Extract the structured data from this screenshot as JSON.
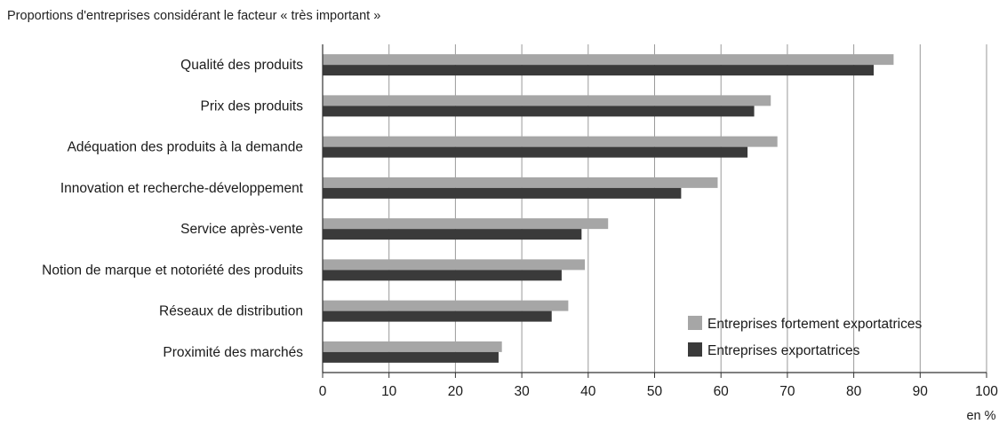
{
  "chart_data": {
    "type": "bar",
    "orientation": "horizontal",
    "title": "Proportions d'entreprises considérant le facteur « très important »",
    "categories": [
      "Qualité des produits",
      "Prix des produits",
      "Adéquation des produits à la demande",
      "Innovation et recherche-développement",
      "Service après-vente",
      "Notion de marque et notoriété des produits",
      "Réseaux de distribution",
      "Proximité des marchés"
    ],
    "series": [
      {
        "name": "Entreprises fortement exportatrices",
        "color": "#a6a6a6",
        "values": [
          86,
          67.5,
          68.5,
          59.5,
          43,
          39.5,
          37,
          27
        ]
      },
      {
        "name": "Entreprises exportatrices",
        "color": "#3a3a3a",
        "values": [
          83,
          65,
          64,
          54,
          39,
          36,
          34.5,
          26.5
        ]
      }
    ],
    "xlim": [
      0,
      100
    ],
    "xticks": [
      "0",
      "10",
      "20",
      "30",
      "40",
      "50",
      "60",
      "70",
      "80",
      "90",
      "100"
    ],
    "xlabel": "en %",
    "grid": true,
    "legend_position": "bottom-right"
  }
}
